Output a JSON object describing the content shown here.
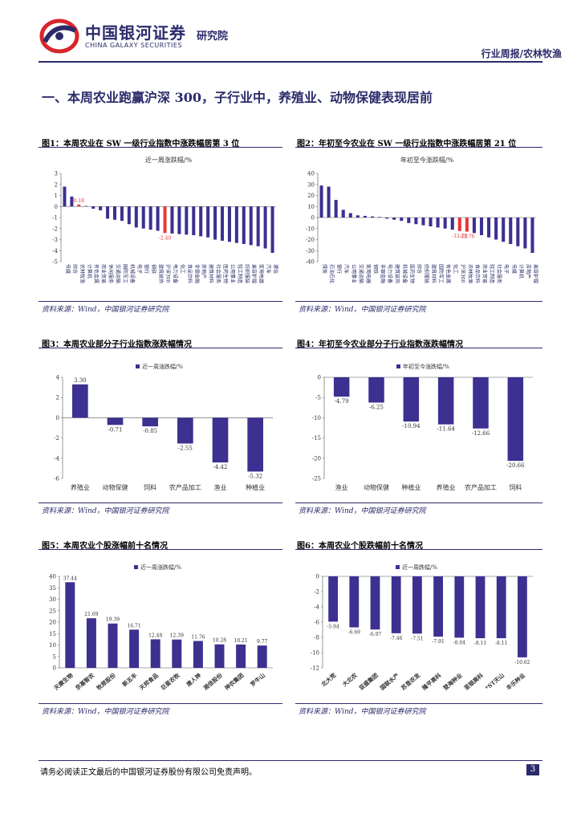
{
  "header": {
    "logo_cn": "中国银河证券",
    "logo_en": "CHINA GALAXY SECURITIES",
    "institute": "研究院",
    "doc_type": "行业周报/农林牧渔"
  },
  "section_title": "一、本周农业跑赢沪深 300，子行业中，养殖业、动物保健表现居前",
  "colors": {
    "bar": "#3c3091",
    "highlight": "#e8393a",
    "brand": "#2b2b6b"
  },
  "figures": [
    {
      "title": "图1：本周农业在 SW 一级行业指数中涨跌幅居第 3 位",
      "source": "资料来源：Wind，中国银河证券研究院"
    },
    {
      "title": "图2：年初至今农业在 SW 一级行业指数中涨跌幅居第 21 位",
      "source": "资料来源：Wind，中国银河证券研究院"
    },
    {
      "title": "图3：本周农业部分子行业指数涨跌幅情况",
      "source": "资料来源：Wind，中国银河证券研究院"
    },
    {
      "title": "图4：年初至今农业部分子行业指数涨跌幅情况",
      "source": "资料来源：Wind，中国银河证券研究院"
    },
    {
      "title": "图5：本周农业个股涨幅前十名情况",
      "source": "资料来源：Wind，中国银河证券研究院"
    },
    {
      "title": "图6：本周农业个股跌幅前十名情况",
      "source": "资料来源：Wind，中国银河证券研究院"
    }
  ],
  "footer": {
    "disclaimer": "请务必阅读正文最后的中国银河证券股份有限公司免责声明。",
    "page": "3"
  },
  "chart_data": [
    {
      "id": "c1",
      "type": "bar",
      "title": "近一周涨跌幅/%",
      "ylim": [
        -5,
        3
      ],
      "yticks": [
        3,
        2,
        1,
        0,
        -1,
        -2,
        -3,
        -4,
        -5
      ],
      "categories": [
        "传媒",
        "综合",
        "农林牧渔",
        "计算机",
        "有色金属",
        "商业贸易",
        "休闲服务",
        "交通运输",
        "国防军工",
        "机械设备",
        "电子",
        "银行",
        "钢铁",
        "建筑装饰",
        "沪深300",
        "电力设备",
        "化工",
        "食品饮料",
        "非银金融",
        "房地产",
        "建筑材料",
        "社会服务",
        "医药生物",
        "公用事业",
        "轻工制造",
        "纺织服装",
        "美容护理",
        "家用电器",
        "汽车",
        "通信"
      ],
      "values": [
        1.8,
        0.9,
        0.18,
        0.05,
        -0.2,
        -0.35,
        -1.1,
        -1.2,
        -1.3,
        -1.6,
        -1.9,
        -2.0,
        -2.1,
        -2.2,
        -2.4,
        -2.45,
        -2.5,
        -2.55,
        -2.6,
        -2.7,
        -2.8,
        -3.0,
        -3.1,
        -3.2,
        -3.3,
        -3.4,
        -3.5,
        -3.6,
        -3.8,
        -4.2
      ],
      "labels": {
        "2": "0.18",
        "14": "-2.40"
      },
      "highlight": [
        2,
        14
      ],
      "highlight_label_color": "#e8393a"
    },
    {
      "id": "c2",
      "type": "bar",
      "title": "年初至今涨跌幅/%",
      "ylim": [
        -40,
        40
      ],
      "yticks": [
        40,
        30,
        20,
        10,
        0,
        -10,
        -20,
        -30,
        -40
      ],
      "categories": [
        "煤炭",
        "石油石化",
        "银行",
        "汽车",
        "公用事业",
        "交通运输",
        "家用电器",
        "钢铁",
        "非银金融",
        "电力设备",
        "建筑装饰",
        "机械设备",
        "医药生物",
        "综合",
        "纺织服装",
        "建筑材料",
        "国防军工",
        "有色金属",
        "化工",
        "沪深300",
        "农林牧渔",
        "食品饮料",
        "商业贸易",
        "轻工制造",
        "社会服务",
        "电子",
        "传媒",
        "计算机",
        "房地产",
        "美容护理"
      ],
      "values": [
        29,
        28,
        16,
        7,
        4,
        2,
        1.5,
        1,
        0.5,
        -1,
        -2,
        -3,
        -5,
        -6,
        -7,
        -8,
        -9,
        -10,
        -11,
        -12.2,
        -12.76,
        -14,
        -16,
        -18,
        -20,
        -22,
        -24,
        -26,
        -28,
        -32
      ],
      "labels": {
        "19": "-12.20",
        "20": "-12.76"
      },
      "highlight": [
        19,
        20
      ],
      "highlight_label_color": "#e8393a"
    },
    {
      "id": "c3",
      "type": "bar",
      "title": "近一周涨跌幅/%",
      "ylim": [
        -6,
        4
      ],
      "yticks": [
        4,
        2,
        0,
        -2,
        -4,
        -6
      ],
      "categories": [
        "养殖业",
        "动物保健",
        "饲料",
        "农产品加工",
        "渔业",
        "种植业"
      ],
      "values": [
        3.3,
        -0.71,
        -0.85,
        -2.55,
        -4.42,
        -5.32
      ],
      "labels": {
        "0": "3.30",
        "1": "-0.71",
        "2": "-0.85",
        "3": "-2.55",
        "4": "-4.42",
        "5": "-5.32"
      },
      "highlight": []
    },
    {
      "id": "c4",
      "type": "bar",
      "title": "年初至今涨跌幅/%",
      "ylim": [
        -25,
        0
      ],
      "yticks": [
        0,
        -5,
        -10,
        -15,
        -20,
        -25
      ],
      "categories": [
        "渔业",
        "动物保健",
        "种植业",
        "养殖业",
        "农产品加工",
        "饲料"
      ],
      "values": [
        -4.79,
        -6.25,
        -10.94,
        -11.64,
        -12.66,
        -20.66
      ],
      "labels": {
        "0": "-4.79",
        "1": "-6.25",
        "2": "-10.94",
        "3": "-11.64",
        "4": "-12.66",
        "5": "-20.66"
      },
      "highlight": []
    },
    {
      "id": "c5",
      "type": "bar",
      "title": "近一周涨跌幅/%",
      "ylim": [
        0,
        40
      ],
      "yticks": [
        40,
        35,
        30,
        25,
        20,
        15,
        10,
        5,
        0
      ],
      "categories": [
        "天康生物",
        "京基智农",
        "牧原股份",
        "新五丰",
        "天邦食品",
        "巨星农牧",
        "唐人神",
        "湘佳股份",
        "神农集团",
        "罗牛山"
      ],
      "values": [
        37.44,
        21.69,
        19.39,
        16.71,
        12.48,
        12.39,
        11.76,
        10.28,
        10.21,
        9.77
      ],
      "labels": {
        "0": "37.44",
        "1": "21.69",
        "2": "19.39",
        "3": "16.71",
        "4": "12.48",
        "5": "12.39",
        "6": "11.76",
        "7": "10.28",
        "8": "10.21",
        "9": "9.77"
      },
      "highlight": []
    },
    {
      "id": "c6",
      "type": "bar",
      "title": "近一周跌幅/%",
      "ylim": [
        -12,
        0
      ],
      "yticks": [
        0,
        -2,
        -4,
        -6,
        -8,
        -10,
        -12
      ],
      "categories": [
        "北大荒",
        "大北农",
        "亚盛集团",
        "国联水产",
        "苏垦农发",
        "隆平高科",
        "登海种业",
        "荃银高科",
        "*ST天山",
        "丰乐种业"
      ],
      "values": [
        -5.94,
        -6.69,
        -6.97,
        -7.46,
        -7.51,
        -7.91,
        -8.04,
        -8.11,
        -8.11,
        -10.62
      ],
      "labels": {
        "0": "-5.94",
        "1": "-6.69",
        "2": "-6.97",
        "3": "-7.46",
        "4": "-7.51",
        "5": "-7.91",
        "6": "-8.04",
        "7": "-8.11",
        "8": "-8.11",
        "9": "-10.62"
      },
      "highlight": []
    }
  ]
}
